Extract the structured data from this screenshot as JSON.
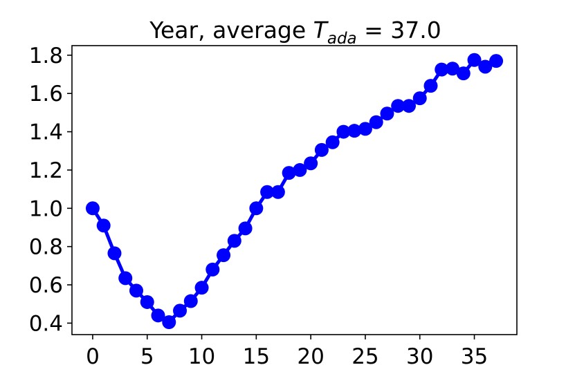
{
  "chart_data": {
    "type": "line",
    "title": {
      "prefix": "Year, average ",
      "var_main": "T",
      "var_sub": "ada",
      "suffix": " = 37.0"
    },
    "xlabel": "",
    "ylabel": "",
    "xlim": [
      -1.9,
      38.9
    ],
    "ylim": [
      0.34,
      1.85
    ],
    "x_ticks": [
      0,
      5,
      10,
      15,
      20,
      25,
      30,
      35
    ],
    "x_tick_labels": [
      "0",
      "5",
      "10",
      "15",
      "20",
      "25",
      "30",
      "35"
    ],
    "y_ticks": [
      0.4,
      0.6,
      0.8,
      1.0,
      1.2,
      1.4,
      1.6,
      1.8
    ],
    "y_tick_labels": [
      "0.4",
      "0.6",
      "0.8",
      "1.0",
      "1.2",
      "1.4",
      "1.6",
      "1.8"
    ],
    "grid": false,
    "colors": {
      "series": "#0000ff",
      "axes": "#000000"
    },
    "series": [
      {
        "x": [
          0,
          1,
          2,
          3,
          4,
          5,
          6,
          7,
          8,
          9,
          10,
          11,
          12,
          13,
          14,
          15,
          16,
          17,
          18,
          19,
          20,
          21,
          22,
          23,
          24,
          25,
          26,
          27,
          28,
          29,
          30,
          31,
          32,
          33,
          34,
          35,
          36,
          37
        ],
        "values": [
          1.0,
          0.91,
          0.765,
          0.635,
          0.57,
          0.51,
          0.44,
          0.405,
          0.465,
          0.515,
          0.585,
          0.68,
          0.755,
          0.83,
          0.895,
          1.0,
          1.085,
          1.085,
          1.185,
          1.2,
          1.235,
          1.305,
          1.345,
          1.4,
          1.405,
          1.415,
          1.45,
          1.495,
          1.535,
          1.535,
          1.575,
          1.64,
          1.725,
          1.73,
          1.705,
          1.775,
          1.74,
          1.77
        ]
      }
    ]
  }
}
